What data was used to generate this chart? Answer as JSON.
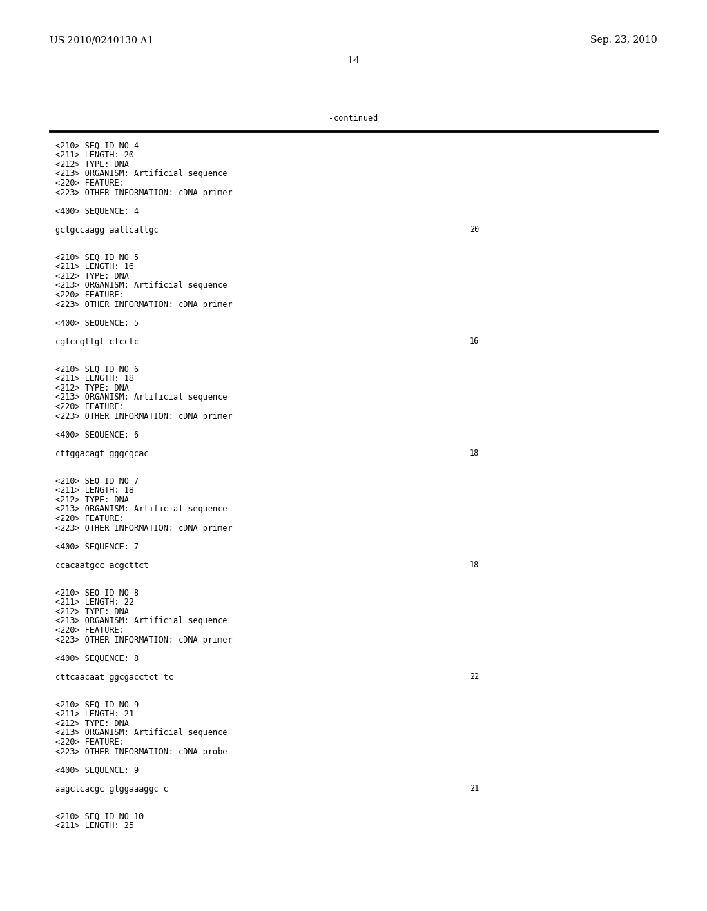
{
  "background_color": "#ffffff",
  "header_left": "US 2010/0240130 A1",
  "header_right": "Sep. 23, 2010",
  "page_number": "14",
  "continued_label": "-continued",
  "mono_fontsize": 8.5,
  "header_fontsize": 10,
  "page_num_fontsize": 11,
  "continued_fontsize": 8.5,
  "content_lines": [
    {
      "text": "<210> SEQ ID NO 4",
      "num": null
    },
    {
      "text": "<211> LENGTH: 20",
      "num": null
    },
    {
      "text": "<212> TYPE: DNA",
      "num": null
    },
    {
      "text": "<213> ORGANISM: Artificial sequence",
      "num": null
    },
    {
      "text": "<220> FEATURE:",
      "num": null
    },
    {
      "text": "<223> OTHER INFORMATION: cDNA primer",
      "num": null
    },
    {
      "text": "",
      "num": null
    },
    {
      "text": "<400> SEQUENCE: 4",
      "num": null
    },
    {
      "text": "",
      "num": null
    },
    {
      "text": "gctgccaagg aattcattgc",
      "num": "20"
    },
    {
      "text": "",
      "num": null
    },
    {
      "text": "",
      "num": null
    },
    {
      "text": "<210> SEQ ID NO 5",
      "num": null
    },
    {
      "text": "<211> LENGTH: 16",
      "num": null
    },
    {
      "text": "<212> TYPE: DNA",
      "num": null
    },
    {
      "text": "<213> ORGANISM: Artificial sequence",
      "num": null
    },
    {
      "text": "<220> FEATURE:",
      "num": null
    },
    {
      "text": "<223> OTHER INFORMATION: cDNA primer",
      "num": null
    },
    {
      "text": "",
      "num": null
    },
    {
      "text": "<400> SEQUENCE: 5",
      "num": null
    },
    {
      "text": "",
      "num": null
    },
    {
      "text": "cgtccgttgt ctcctc",
      "num": "16"
    },
    {
      "text": "",
      "num": null
    },
    {
      "text": "",
      "num": null
    },
    {
      "text": "<210> SEQ ID NO 6",
      "num": null
    },
    {
      "text": "<211> LENGTH: 18",
      "num": null
    },
    {
      "text": "<212> TYPE: DNA",
      "num": null
    },
    {
      "text": "<213> ORGANISM: Artificial sequence",
      "num": null
    },
    {
      "text": "<220> FEATURE:",
      "num": null
    },
    {
      "text": "<223> OTHER INFORMATION: cDNA primer",
      "num": null
    },
    {
      "text": "",
      "num": null
    },
    {
      "text": "<400> SEQUENCE: 6",
      "num": null
    },
    {
      "text": "",
      "num": null
    },
    {
      "text": "cttggacagt gggcgcac",
      "num": "18"
    },
    {
      "text": "",
      "num": null
    },
    {
      "text": "",
      "num": null
    },
    {
      "text": "<210> SEQ ID NO 7",
      "num": null
    },
    {
      "text": "<211> LENGTH: 18",
      "num": null
    },
    {
      "text": "<212> TYPE: DNA",
      "num": null
    },
    {
      "text": "<213> ORGANISM: Artificial sequence",
      "num": null
    },
    {
      "text": "<220> FEATURE:",
      "num": null
    },
    {
      "text": "<223> OTHER INFORMATION: cDNA primer",
      "num": null
    },
    {
      "text": "",
      "num": null
    },
    {
      "text": "<400> SEQUENCE: 7",
      "num": null
    },
    {
      "text": "",
      "num": null
    },
    {
      "text": "ccacaatgcc acgcttct",
      "num": "18"
    },
    {
      "text": "",
      "num": null
    },
    {
      "text": "",
      "num": null
    },
    {
      "text": "<210> SEQ ID NO 8",
      "num": null
    },
    {
      "text": "<211> LENGTH: 22",
      "num": null
    },
    {
      "text": "<212> TYPE: DNA",
      "num": null
    },
    {
      "text": "<213> ORGANISM: Artificial sequence",
      "num": null
    },
    {
      "text": "<220> FEATURE:",
      "num": null
    },
    {
      "text": "<223> OTHER INFORMATION: cDNA primer",
      "num": null
    },
    {
      "text": "",
      "num": null
    },
    {
      "text": "<400> SEQUENCE: 8",
      "num": null
    },
    {
      "text": "",
      "num": null
    },
    {
      "text": "cttcaacaat ggcgacctct tc",
      "num": "22"
    },
    {
      "text": "",
      "num": null
    },
    {
      "text": "",
      "num": null
    },
    {
      "text": "<210> SEQ ID NO 9",
      "num": null
    },
    {
      "text": "<211> LENGTH: 21",
      "num": null
    },
    {
      "text": "<212> TYPE: DNA",
      "num": null
    },
    {
      "text": "<213> ORGANISM: Artificial sequence",
      "num": null
    },
    {
      "text": "<220> FEATURE:",
      "num": null
    },
    {
      "text": "<223> OTHER INFORMATION: cDNA probe",
      "num": null
    },
    {
      "text": "",
      "num": null
    },
    {
      "text": "<400> SEQUENCE: 9",
      "num": null
    },
    {
      "text": "",
      "num": null
    },
    {
      "text": "aagctcacgc gtggaaaggc c",
      "num": "21"
    },
    {
      "text": "",
      "num": null
    },
    {
      "text": "",
      "num": null
    },
    {
      "text": "<210> SEQ ID NO 10",
      "num": null
    },
    {
      "text": "<211> LENGTH: 25",
      "num": null
    }
  ]
}
